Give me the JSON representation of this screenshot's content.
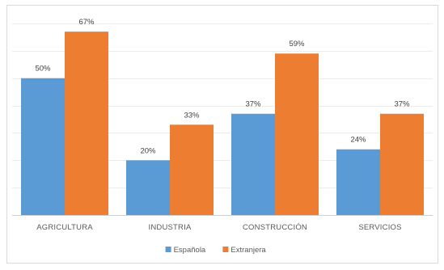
{
  "chart_data": {
    "type": "bar",
    "title": "",
    "xlabel": "",
    "ylabel": "",
    "ylim": [
      0,
      70
    ],
    "grid": true,
    "legend": "bottom-center",
    "categories": [
      "AGRICULTURA",
      "INDUSTRIA",
      "CONSTRUCCIÓN",
      "SERVICIOS"
    ],
    "series": [
      {
        "name": "Española",
        "color": "#5b9bd5",
        "values": [
          50,
          20,
          37,
          24
        ],
        "labels": [
          "50%",
          "20%",
          "37%",
          "24%"
        ]
      },
      {
        "name": "Extranjera",
        "color": "#ed7d31",
        "values": [
          67,
          33,
          59,
          37
        ],
        "labels": [
          "67%",
          "33%",
          "59%",
          "37%"
        ]
      }
    ]
  }
}
